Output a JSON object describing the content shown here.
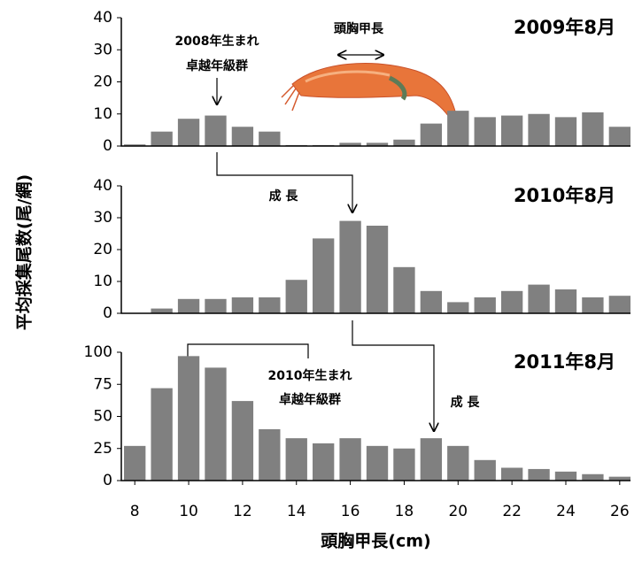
{
  "chart_data": [
    {
      "type": "bar",
      "title": "2009年8月",
      "color": "#808080",
      "x": [
        8,
        9,
        10,
        11,
        12,
        13,
        14,
        15,
        16,
        17,
        18,
        19,
        20,
        21,
        22,
        23,
        24,
        25,
        26
      ],
      "values": [
        0.5,
        4.5,
        8.5,
        9.5,
        6,
        4.5,
        0.3,
        0.3,
        1,
        1,
        2,
        7,
        11,
        9,
        9.5,
        10,
        9,
        10.5,
        6
      ],
      "xlim": [
        7.5,
        26.4
      ],
      "ylim": [
        0,
        40
      ],
      "yticks": [
        0,
        10,
        20,
        30,
        40
      ],
      "annotations": [
        "2008年生まれ",
        "卓越年級群",
        "頭胸甲長"
      ]
    },
    {
      "type": "bar",
      "title": "2010年8月",
      "color": "#808080",
      "ylabel": "平均採集尾数(尾/網)",
      "x": [
        8,
        9,
        10,
        11,
        12,
        13,
        14,
        15,
        16,
        17,
        18,
        19,
        20,
        21,
        22,
        23,
        24,
        25,
        26
      ],
      "values": [
        0,
        1.5,
        4.5,
        4.5,
        5,
        5,
        10.5,
        23.5,
        29,
        27.5,
        14.5,
        7,
        3.5,
        5,
        7,
        9,
        7.5,
        5,
        5.5
      ],
      "xlim": [
        7.5,
        26.4
      ],
      "ylim": [
        0,
        40
      ],
      "yticks": [
        0,
        10,
        20,
        30,
        40
      ],
      "annotations": [
        "成 長"
      ]
    },
    {
      "type": "bar",
      "title": "2011年8月",
      "color": "#808080",
      "xlabel": "頭胸甲長(cm)",
      "x": [
        8,
        9,
        10,
        11,
        12,
        13,
        14,
        15,
        16,
        17,
        18,
        19,
        20,
        21,
        22,
        23,
        24,
        25,
        26
      ],
      "values": [
        27,
        72,
        97,
        88,
        62,
        40,
        33,
        29,
        33,
        27,
        25,
        33,
        27,
        16,
        10,
        9,
        7,
        5,
        3
      ],
      "xlim": [
        7.5,
        26.4
      ],
      "ylim": [
        0,
        100
      ],
      "yticks": [
        0,
        25,
        50,
        75,
        100
      ],
      "xticks": [
        8,
        10,
        12,
        14,
        16,
        18,
        20,
        22,
        24,
        26
      ],
      "annotations": [
        "2010年生まれ",
        "卓越年級群",
        "成 長"
      ]
    }
  ]
}
